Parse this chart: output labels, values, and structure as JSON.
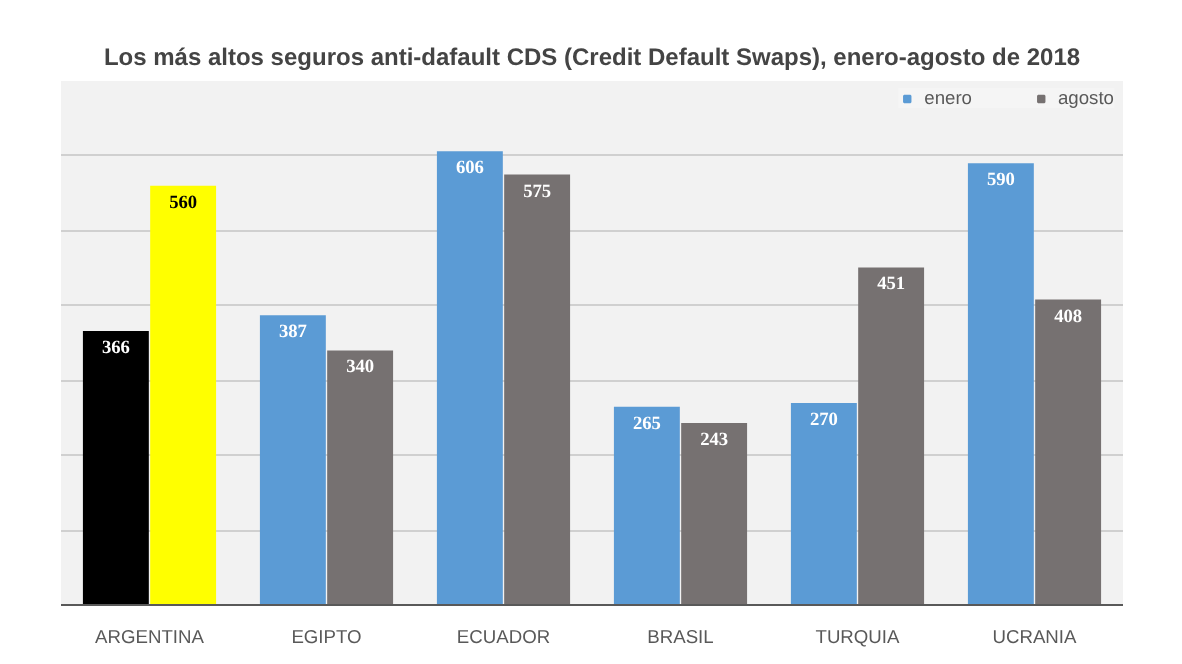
{
  "chart_data": {
    "type": "bar",
    "title": "Los más altos seguros anti-dafault CDS (Credit Default Swaps), enero-agosto de 2018",
    "categories": [
      "ARGENTINA",
      "EGIPTO",
      "ECUADOR",
      "BRASIL",
      "TURQUIA",
      "UCRANIA"
    ],
    "series": [
      {
        "name": "enero",
        "color": "#5b9bd5",
        "colors": [
          "#000000",
          "#5b9bd5",
          "#5b9bd5",
          "#5b9bd5",
          "#5b9bd5",
          "#5b9bd5"
        ],
        "values": [
          366,
          387,
          606,
          265,
          270,
          590
        ]
      },
      {
        "name": "agosto",
        "color": "#767171",
        "colors": [
          "#ffff00",
          "#767171",
          "#767171",
          "#767171",
          "#767171",
          "#767171"
        ],
        "values": [
          560,
          340,
          575,
          243,
          451,
          408
        ]
      }
    ],
    "ylim": [
      0,
      700
    ],
    "yticks": [
      {
        "value": 0,
        "label": null
      },
      {
        "value": 100,
        "label": null
      },
      {
        "value": 200,
        "label": null
      },
      {
        "value": 300,
        "label": null
      },
      {
        "value": 400,
        "label": null
      },
      {
        "value": 500,
        "label": null
      },
      {
        "value": 600,
        "label": null
      },
      {
        "value": 700,
        "label": null
      }
    ],
    "tick_labels": "x",
    "grid": "y",
    "legend": "top right",
    "data_labels": true
  }
}
